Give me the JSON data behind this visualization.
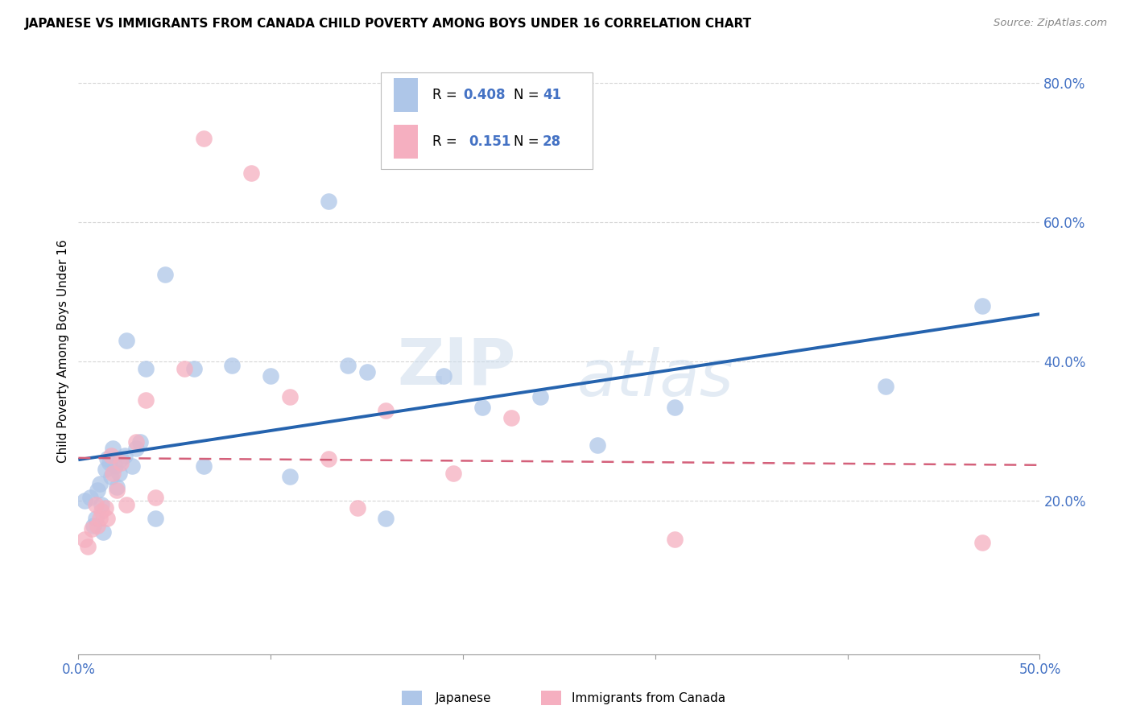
{
  "title": "JAPANESE VS IMMIGRANTS FROM CANADA CHILD POVERTY AMONG BOYS UNDER 16 CORRELATION CHART",
  "source": "Source: ZipAtlas.com",
  "ylabel": "Child Poverty Among Boys Under 16",
  "xlim": [
    0.0,
    0.5
  ],
  "ylim": [
    -0.02,
    0.85
  ],
  "yticks": [
    0.2,
    0.4,
    0.6,
    0.8
  ],
  "ytick_labels": [
    "20.0%",
    "40.0%",
    "60.0%",
    "80.0%"
  ],
  "r_japanese": 0.408,
  "n_japanese": 41,
  "r_canada": 0.151,
  "n_canada": 28,
  "japanese_color": "#aec6e8",
  "canada_color": "#f5afc0",
  "line_japanese_color": "#2563ae",
  "line_canada_color": "#d4607a",
  "japanese_x": [
    0.003,
    0.006,
    0.008,
    0.009,
    0.01,
    0.011,
    0.012,
    0.013,
    0.014,
    0.015,
    0.016,
    0.017,
    0.018,
    0.019,
    0.02,
    0.021,
    0.022,
    0.024,
    0.025,
    0.028,
    0.03,
    0.032,
    0.035,
    0.04,
    0.045,
    0.06,
    0.065,
    0.08,
    0.1,
    0.11,
    0.13,
    0.14,
    0.15,
    0.16,
    0.19,
    0.21,
    0.24,
    0.27,
    0.31,
    0.42,
    0.47
  ],
  "japanese_y": [
    0.2,
    0.205,
    0.165,
    0.175,
    0.215,
    0.225,
    0.195,
    0.155,
    0.245,
    0.26,
    0.255,
    0.235,
    0.275,
    0.25,
    0.22,
    0.24,
    0.26,
    0.265,
    0.43,
    0.25,
    0.275,
    0.285,
    0.39,
    0.175,
    0.525,
    0.39,
    0.25,
    0.395,
    0.38,
    0.235,
    0.63,
    0.395,
    0.385,
    0.175,
    0.38,
    0.335,
    0.35,
    0.28,
    0.335,
    0.365,
    0.48
  ],
  "canada_x": [
    0.003,
    0.005,
    0.007,
    0.009,
    0.01,
    0.011,
    0.012,
    0.014,
    0.015,
    0.017,
    0.018,
    0.02,
    0.022,
    0.025,
    0.03,
    0.035,
    0.04,
    0.055,
    0.065,
    0.09,
    0.11,
    0.13,
    0.145,
    0.16,
    0.195,
    0.225,
    0.31,
    0.47
  ],
  "canada_y": [
    0.145,
    0.135,
    0.16,
    0.195,
    0.165,
    0.175,
    0.185,
    0.19,
    0.175,
    0.265,
    0.24,
    0.215,
    0.255,
    0.195,
    0.285,
    0.345,
    0.205,
    0.39,
    0.72,
    0.67,
    0.35,
    0.26,
    0.19,
    0.33,
    0.24,
    0.32,
    0.145,
    0.14
  ],
  "watermark_zip": "ZIP",
  "watermark_atlas": "atlas"
}
